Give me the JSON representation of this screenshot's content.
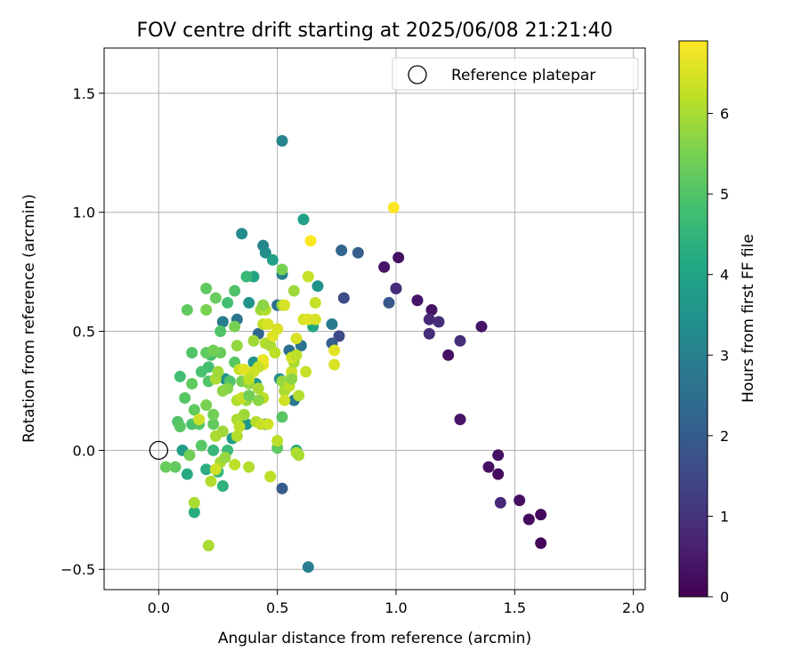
{
  "chart_data": {
    "type": "scatter",
    "title": "FOV centre drift starting at 2025/06/08 21:21:40",
    "xlabel": "Angular distance from reference (arcmin)",
    "ylabel": "Rotation from reference (arcmin)",
    "xlim": [
      -0.23,
      2.05
    ],
    "ylim": [
      -0.585,
      1.69
    ],
    "xticks": [
      0.0,
      0.5,
      1.0,
      1.5,
      2.0
    ],
    "xtick_labels": [
      "0.0",
      "0.5",
      "1.0",
      "1.5",
      "2.0"
    ],
    "yticks": [
      -0.5,
      0.0,
      0.5,
      1.0,
      1.5
    ],
    "ytick_labels": [
      "−0.5",
      "0.0",
      "0.5",
      "1.0",
      "1.5"
    ],
    "grid": true,
    "legend": {
      "position": "top-right",
      "label": "Reference platepar"
    },
    "reference_point": {
      "x": 0.0,
      "y": 0.0
    },
    "colorbar": {
      "label": "Hours from first FF file",
      "min": 0,
      "max": 6.9,
      "ticks": [
        0,
        1,
        2,
        3,
        4,
        5,
        6
      ],
      "tick_labels": [
        "0",
        "1",
        "2",
        "3",
        "4",
        "5",
        "6"
      ],
      "colormap": "viridis"
    },
    "points": [
      [
        1.61,
        -0.39,
        0.1
      ],
      [
        1.61,
        -0.27,
        0.15
      ],
      [
        1.56,
        -0.29,
        0.2
      ],
      [
        1.52,
        -0.21,
        0.25
      ],
      [
        1.44,
        -0.22,
        0.8
      ],
      [
        1.43,
        -0.02,
        0.3
      ],
      [
        1.43,
        -0.1,
        0.2
      ],
      [
        1.39,
        -0.07,
        0.3
      ],
      [
        1.36,
        0.52,
        0.4
      ],
      [
        1.27,
        0.13,
        0.4
      ],
      [
        1.27,
        0.46,
        0.9
      ],
      [
        1.22,
        0.4,
        0.3
      ],
      [
        1.18,
        0.54,
        0.9
      ],
      [
        1.15,
        0.59,
        0.35
      ],
      [
        1.14,
        0.55,
        0.8
      ],
      [
        1.14,
        0.49,
        0.9
      ],
      [
        1.09,
        0.63,
        0.4
      ],
      [
        1.01,
        0.81,
        0.3
      ],
      [
        1.0,
        0.68,
        0.4
      ],
      [
        1.0,
        0.68,
        0.9
      ],
      [
        0.95,
        0.77,
        0.4
      ],
      [
        0.97,
        0.62,
        1.9
      ],
      [
        0.99,
        1.02,
        6.9
      ],
      [
        0.84,
        0.83,
        2.1
      ],
      [
        0.77,
        0.84,
        2.3
      ],
      [
        0.78,
        0.64,
        1.6
      ],
      [
        0.76,
        0.48,
        1.5
      ],
      [
        0.73,
        0.45,
        2.1
      ],
      [
        0.73,
        0.53,
        2.8
      ],
      [
        0.67,
        0.69,
        3.5
      ],
      [
        0.65,
        0.52,
        4.1
      ],
      [
        0.61,
        0.97,
        3.9
      ],
      [
        0.6,
        0.44,
        2.6
      ],
      [
        0.55,
        0.42,
        2.5
      ],
      [
        0.52,
        1.3,
        3.1
      ],
      [
        0.52,
        -0.16,
        2.0
      ],
      [
        0.63,
        -0.49,
        2.9
      ],
      [
        0.35,
        0.91,
        3.3
      ],
      [
        0.44,
        0.86,
        3.1
      ],
      [
        0.45,
        0.83,
        3.3
      ],
      [
        0.48,
        0.8,
        3.9
      ],
      [
        0.52,
        0.74,
        3.0
      ],
      [
        0.4,
        0.73,
        4.0
      ],
      [
        0.37,
        0.73,
        4.6
      ],
      [
        0.38,
        0.62,
        3.5
      ],
      [
        0.42,
        0.49,
        2.3
      ],
      [
        0.5,
        0.61,
        2.5
      ],
      [
        0.27,
        0.54,
        2.9
      ],
      [
        0.33,
        0.55,
        2.7
      ],
      [
        0.57,
        0.21,
        2.8
      ],
      [
        0.51,
        0.3,
        3.3
      ],
      [
        0.45,
        0.11,
        3.5
      ],
      [
        0.37,
        0.11,
        3.6
      ],
      [
        0.41,
        0.28,
        3.6
      ],
      [
        0.38,
        0.23,
        3.6
      ],
      [
        0.28,
        0.3,
        3.5
      ],
      [
        0.31,
        0.05,
        3.8
      ],
      [
        0.4,
        0.37,
        3.5
      ],
      [
        0.58,
        0.0,
        4.2
      ],
      [
        0.5,
        0.01,
        5.2
      ],
      [
        0.52,
        0.14,
        5.1
      ],
      [
        0.1,
        0.0,
        3.8
      ],
      [
        0.15,
        -0.26,
        4.3
      ],
      [
        0.12,
        -0.1,
        4.2
      ],
      [
        0.27,
        -0.15,
        4.4
      ],
      [
        0.25,
        -0.09,
        4.5
      ],
      [
        0.2,
        -0.08,
        4.3
      ],
      [
        0.23,
        0.0,
        4.6
      ],
      [
        0.29,
        0.0,
        4.7
      ],
      [
        0.07,
        -0.07,
        5.2
      ],
      [
        0.03,
        -0.07,
        5.3
      ],
      [
        0.13,
        -0.02,
        5.4
      ],
      [
        0.18,
        0.02,
        5.1
      ],
      [
        0.08,
        0.12,
        5.0
      ],
      [
        0.09,
        0.1,
        5.1
      ],
      [
        0.14,
        0.11,
        4.9
      ],
      [
        0.17,
        0.11,
        5.0
      ],
      [
        0.23,
        0.11,
        5.2
      ],
      [
        0.23,
        0.15,
        5.4
      ],
      [
        0.2,
        0.19,
        5.5
      ],
      [
        0.15,
        0.17,
        5.2
      ],
      [
        0.11,
        0.22,
        5.1
      ],
      [
        0.14,
        0.28,
        5.2
      ],
      [
        0.09,
        0.31,
        4.8
      ],
      [
        0.18,
        0.33,
        4.9
      ],
      [
        0.21,
        0.35,
        4.8
      ],
      [
        0.21,
        0.29,
        5.0
      ],
      [
        0.22,
        0.4,
        4.9
      ],
      [
        0.26,
        0.41,
        5.3
      ],
      [
        0.14,
        0.41,
        5.0
      ],
      [
        0.2,
        0.41,
        5.2
      ],
      [
        0.23,
        0.42,
        5.4
      ],
      [
        0.26,
        0.5,
        5.0
      ],
      [
        0.12,
        0.59,
        5.2
      ],
      [
        0.2,
        0.59,
        5.5
      ],
      [
        0.24,
        0.64,
        5.3
      ],
      [
        0.2,
        0.68,
        5.2
      ],
      [
        0.32,
        0.67,
        5.0
      ],
      [
        0.29,
        0.62,
        4.8
      ],
      [
        0.32,
        0.52,
        5.5
      ],
      [
        0.33,
        0.44,
        5.8
      ],
      [
        0.32,
        0.37,
        5.1
      ],
      [
        0.3,
        0.29,
        5.0
      ],
      [
        0.29,
        0.26,
        5.6
      ],
      [
        0.27,
        0.25,
        5.7
      ],
      [
        0.24,
        0.3,
        6.0
      ],
      [
        0.25,
        0.33,
        5.9
      ],
      [
        0.34,
        0.34,
        6.3
      ],
      [
        0.35,
        0.29,
        5.5
      ],
      [
        0.38,
        0.28,
        5.8
      ],
      [
        0.42,
        0.26,
        6.0
      ],
      [
        0.44,
        0.22,
        6.2
      ],
      [
        0.42,
        0.21,
        5.7
      ],
      [
        0.37,
        0.21,
        5.8
      ],
      [
        0.33,
        0.21,
        6.1
      ],
      [
        0.36,
        0.15,
        5.9
      ],
      [
        0.33,
        0.13,
        6.0
      ],
      [
        0.41,
        0.12,
        6.1
      ],
      [
        0.43,
        0.11,
        6.3
      ],
      [
        0.46,
        0.11,
        6.4
      ],
      [
        0.34,
        0.1,
        6.2
      ],
      [
        0.33,
        0.06,
        6.1
      ],
      [
        0.27,
        0.08,
        5.9
      ],
      [
        0.24,
        0.06,
        6.0
      ],
      [
        0.26,
        -0.05,
        6.0
      ],
      [
        0.28,
        -0.03,
        5.8
      ],
      [
        0.32,
        -0.06,
        6.2
      ],
      [
        0.38,
        -0.07,
        6.1
      ],
      [
        0.24,
        -0.08,
        6.4
      ],
      [
        0.22,
        -0.13,
        6.1
      ],
      [
        0.15,
        -0.22,
        6.0
      ],
      [
        0.21,
        -0.4,
        6.0
      ],
      [
        0.47,
        -0.11,
        6.2
      ],
      [
        0.17,
        0.13,
        6.4
      ],
      [
        0.5,
        0.04,
        6.2
      ],
      [
        0.58,
        -0.01,
        6.1
      ],
      [
        0.59,
        -0.02,
        6.0
      ],
      [
        0.43,
        0.59,
        5.9
      ],
      [
        0.4,
        0.46,
        5.9
      ],
      [
        0.45,
        0.45,
        6.1
      ],
      [
        0.47,
        0.44,
        6.0
      ],
      [
        0.44,
        0.53,
        6.3
      ],
      [
        0.46,
        0.53,
        6.5
      ],
      [
        0.48,
        0.48,
        6.6
      ],
      [
        0.5,
        0.51,
        6.5
      ],
      [
        0.44,
        0.36,
        6.6
      ],
      [
        0.44,
        0.38,
        6.7
      ],
      [
        0.42,
        0.35,
        6.3
      ],
      [
        0.4,
        0.33,
        6.4
      ],
      [
        0.38,
        0.3,
        6.2
      ],
      [
        0.36,
        0.34,
        6.6
      ],
      [
        0.49,
        0.41,
        6.2
      ],
      [
        0.52,
        0.29,
        5.8
      ],
      [
        0.53,
        0.25,
        6.0
      ],
      [
        0.55,
        0.27,
        6.2
      ],
      [
        0.56,
        0.31,
        6.3
      ],
      [
        0.56,
        0.33,
        6.4
      ],
      [
        0.57,
        0.37,
        6.0
      ],
      [
        0.56,
        0.39,
        6.4
      ],
      [
        0.58,
        0.4,
        6.2
      ],
      [
        0.58,
        0.47,
        6.5
      ],
      [
        0.59,
        0.23,
        6.1
      ],
      [
        0.62,
        0.33,
        6.3
      ],
      [
        0.52,
        0.61,
        5.8
      ],
      [
        0.53,
        0.61,
        6.5
      ],
      [
        0.52,
        0.76,
        5.5
      ],
      [
        0.57,
        0.67,
        5.9
      ],
      [
        0.63,
        0.73,
        6.3
      ],
      [
        0.64,
        0.88,
        6.9
      ],
      [
        0.61,
        0.55,
        6.5
      ],
      [
        0.63,
        0.55,
        6.6
      ],
      [
        0.66,
        0.55,
        6.5
      ],
      [
        0.66,
        0.62,
        6.3
      ],
      [
        0.74,
        0.42,
        6.6
      ],
      [
        0.74,
        0.36,
        6.5
      ],
      [
        0.53,
        0.21,
        6.4
      ],
      [
        0.56,
        0.3,
        5.7
      ],
      [
        0.45,
        0.59,
        6.1
      ],
      [
        0.44,
        0.61,
        5.7
      ],
      [
        0.35,
        0.22,
        6.3
      ],
      [
        0.38,
        0.23,
        5.4
      ]
    ]
  }
}
